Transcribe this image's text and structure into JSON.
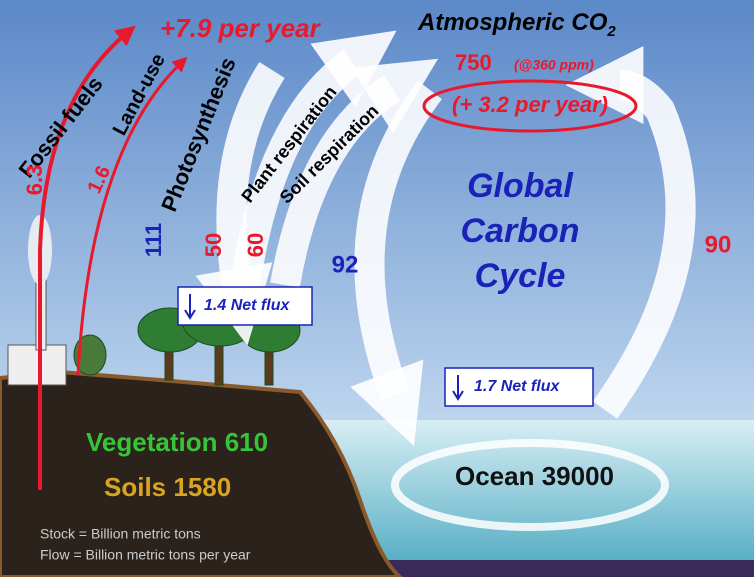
{
  "header": {
    "atmosphere": "Atmospheric CO",
    "atmosphere_subscript": "2",
    "human_rate": "+7.9 per year"
  },
  "atmosphere": {
    "stock": "750",
    "note": "(@360 ppm)",
    "change": "(+ 3.2 per year)"
  },
  "center_label": [
    "Global",
    "Carbon",
    "Cycle"
  ],
  "flows": [
    {
      "label": "Fossil fuels",
      "value": "6.3"
    },
    {
      "label": "Land-use",
      "value": "1.6"
    },
    {
      "label": "Photosynthesis",
      "value": "111"
    },
    {
      "label": "Plant respiration",
      "value": "50"
    },
    {
      "label": "Soil respiration",
      "value": "60"
    },
    {
      "value": "92"
    },
    {
      "value": "90"
    }
  ],
  "net_flux": [
    "1.4 Net flux",
    "1.7 Net flux"
  ],
  "stocks": {
    "vegetation": "Vegetation 610",
    "soils": "Soils 1580",
    "ocean": "Ocean 39000"
  },
  "legend": [
    "Stock = Billion metric tons",
    "Flow = Billion metric tons per year"
  ]
}
